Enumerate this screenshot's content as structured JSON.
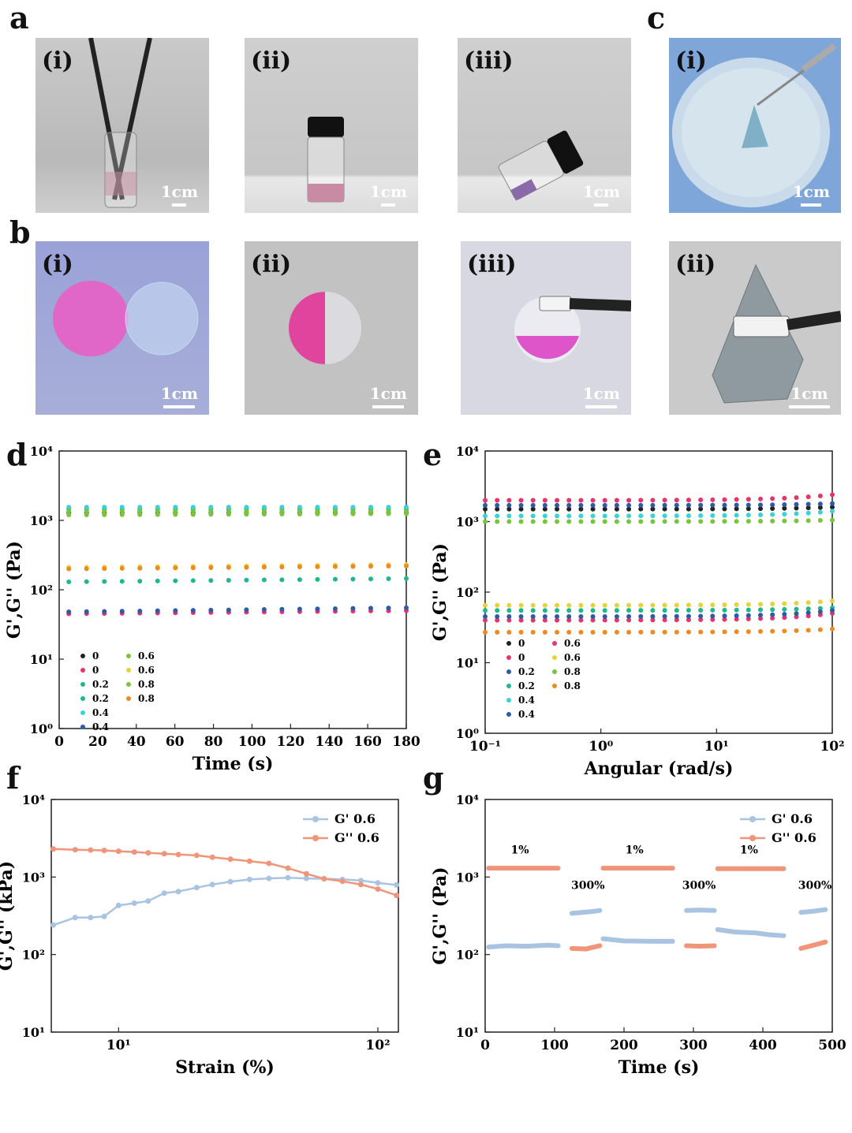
{
  "panels": {
    "a": {
      "letter": "a",
      "photos": [
        {
          "tag": "(i)",
          "scale": "1cm"
        },
        {
          "tag": "(ii)",
          "scale": "1cm"
        },
        {
          "tag": "(iii)",
          "scale": "1cm"
        }
      ]
    },
    "b": {
      "letter": "b",
      "photos": [
        {
          "tag": "(i)",
          "scale": "1cm"
        },
        {
          "tag": "(ii)",
          "scale": "1cm"
        },
        {
          "tag": "(iii)",
          "scale": "1cm"
        }
      ]
    },
    "c": {
      "letter": "c",
      "photos": [
        {
          "tag": "(i)",
          "scale": "1cm"
        },
        {
          "tag": "(ii)",
          "scale": "1cm"
        }
      ]
    },
    "d": {
      "letter": "d"
    },
    "e": {
      "letter": "e"
    },
    "f": {
      "letter": "f"
    },
    "g": {
      "letter": "g"
    }
  },
  "colors": {
    "black": "#222222",
    "red": "#e8336b",
    "teal": "#1fb78f",
    "cyan": "#3ad1d8",
    "blue": "#2f5aa8",
    "yellow": "#e6d23a",
    "orange": "#f08a1e",
    "green": "#7ac43a",
    "gprime": "#a8c4e2",
    "gdouble": "#f0957a"
  },
  "chart_data": [
    {
      "id": "d",
      "type": "scatter",
      "xlabel": "Time (s)",
      "ylabel": "G',G'' (Pa)",
      "xlim": [
        0,
        180
      ],
      "ylim": [
        1,
        10000
      ],
      "yscale": "log",
      "xticks": [
        "0",
        "20",
        "40",
        "60",
        "80",
        "100",
        "120",
        "140",
        "160",
        "180"
      ],
      "yticks": [
        "10⁰",
        "10¹",
        "10²",
        "10³",
        "10⁴"
      ],
      "legend": [
        "0",
        "0",
        "0.2",
        "0.2",
        "0.4",
        "0.4",
        "0.6",
        "0.6",
        "0.8",
        "0.8"
      ],
      "series": [
        {
          "name": "0",
          "color": "black",
          "x": [
            5,
            180
          ],
          "y": [
            1300,
            1300
          ]
        },
        {
          "name": "0",
          "color": "red",
          "x": [
            5,
            180
          ],
          "y": [
            45,
            50
          ]
        },
        {
          "name": "0.2",
          "color": "teal",
          "x": [
            5,
            180
          ],
          "y": [
            1450,
            1450
          ]
        },
        {
          "name": "0.2",
          "color": "teal",
          "x": [
            5,
            180
          ],
          "y": [
            130,
            145
          ]
        },
        {
          "name": "0.4",
          "color": "cyan",
          "x": [
            5,
            180
          ],
          "y": [
            1550,
            1550
          ]
        },
        {
          "name": "0.4",
          "color": "blue",
          "x": [
            5,
            180
          ],
          "y": [
            48,
            55
          ]
        },
        {
          "name": "0.6",
          "color": "green",
          "x": [
            5,
            180
          ],
          "y": [
            1350,
            1350
          ]
        },
        {
          "name": "0.6",
          "color": "yellow",
          "x": [
            5,
            180
          ],
          "y": [
            210,
            230
          ]
        },
        {
          "name": "0.8",
          "color": "green",
          "x": [
            5,
            180
          ],
          "y": [
            1200,
            1250
          ]
        },
        {
          "name": "0.8",
          "color": "orange",
          "x": [
            5,
            180
          ],
          "y": [
            200,
            220
          ]
        }
      ]
    },
    {
      "id": "e",
      "type": "scatter",
      "xlabel": "Angular (rad/s)",
      "ylabel": "G',G'' (Pa)",
      "xlim": [
        0.1,
        100
      ],
      "ylim": [
        1,
        10000
      ],
      "xscale": "log",
      "yscale": "log",
      "xticks": [
        "10⁻¹",
        "10⁰",
        "10¹",
        "10²"
      ],
      "yticks": [
        "10⁰",
        "10¹",
        "10²",
        "10³",
        "10⁴"
      ],
      "legend": [
        "0",
        "0",
        "0.2",
        "0.2",
        "0.4",
        "0.4",
        "0.6",
        "0.6",
        "0.8",
        "0.8"
      ],
      "series": [
        {
          "name": "0",
          "color": "black",
          "x": [
            0.1,
            100
          ],
          "y": [
            1500,
            1600
          ]
        },
        {
          "name": "0",
          "color": "red",
          "x": [
            0.1,
            100
          ],
          "y": [
            40,
            50
          ]
        },
        {
          "name": "0.2",
          "color": "blue",
          "x": [
            0.1,
            100
          ],
          "y": [
            1700,
            1800
          ]
        },
        {
          "name": "0.2",
          "color": "teal",
          "x": [
            0.1,
            100
          ],
          "y": [
            55,
            60
          ]
        },
        {
          "name": "0.4",
          "color": "cyan",
          "x": [
            0.1,
            100
          ],
          "y": [
            1200,
            1400
          ]
        },
        {
          "name": "0.4",
          "color": "blue",
          "x": [
            0.1,
            100
          ],
          "y": [
            45,
            55
          ]
        },
        {
          "name": "0.6",
          "color": "red",
          "x": [
            0.1,
            100
          ],
          "y": [
            2000,
            2400
          ]
        },
        {
          "name": "0.6",
          "color": "yellow",
          "x": [
            0.1,
            100
          ],
          "y": [
            65,
            75
          ]
        },
        {
          "name": "0.8",
          "color": "green",
          "x": [
            0.1,
            100
          ],
          "y": [
            1000,
            1050
          ]
        },
        {
          "name": "0.8",
          "color": "orange",
          "x": [
            0.1,
            100
          ],
          "y": [
            27,
            30
          ]
        }
      ]
    },
    {
      "id": "f",
      "type": "line",
      "xlabel": "Strain (%)",
      "ylabel": "G',G'' (kPa)",
      "xlim": [
        5.5,
        120
      ],
      "ylim": [
        10,
        10000
      ],
      "xscale": "log",
      "yscale": "log",
      "xticks": [
        "10¹",
        "10²"
      ],
      "yticks": [
        "10¹",
        "10²",
        "10³",
        "10⁴"
      ],
      "legend": [
        "G' 0.6",
        "G'' 0.6"
      ],
      "series": [
        {
          "name": "G' 0.6",
          "color": "gprime",
          "x": [
            5.6,
            6.8,
            7.8,
            8.8,
            10,
            11.5,
            13,
            15,
            17,
            20,
            23,
            27,
            32,
            38,
            45,
            53,
            62,
            73,
            86,
            100,
            118
          ],
          "y": [
            240,
            300,
            300,
            310,
            430,
            460,
            490,
            620,
            650,
            730,
            800,
            870,
            930,
            960,
            980,
            960,
            950,
            930,
            900,
            840,
            790
          ]
        },
        {
          "name": "G'' 0.6",
          "color": "gdouble",
          "x": [
            5.6,
            6.8,
            7.8,
            8.8,
            10,
            11.5,
            13,
            15,
            17,
            20,
            23,
            27,
            32,
            38,
            45,
            53,
            62,
            73,
            86,
            100,
            118
          ],
          "y": [
            2300,
            2250,
            2230,
            2200,
            2150,
            2100,
            2050,
            2000,
            1950,
            1900,
            1800,
            1700,
            1600,
            1500,
            1300,
            1100,
            950,
            880,
            800,
            700,
            580
          ]
        }
      ]
    },
    {
      "id": "g",
      "type": "line",
      "xlabel": "Time (s)",
      "ylabel": "G',G'' (Pa)",
      "xlim": [
        0,
        500
      ],
      "ylim": [
        10,
        10000
      ],
      "yscale": "log",
      "xticks": [
        "0",
        "100",
        "200",
        "300",
        "400",
        "500"
      ],
      "yticks": [
        "10¹",
        "10²",
        "10³",
        "10⁴"
      ],
      "legend": [
        "G'  0.6",
        "G''  0.6"
      ],
      "annotations": [
        {
          "text": "1%",
          "x": 50,
          "y": 2000
        },
        {
          "text": "300%",
          "x": 148,
          "y": 700
        },
        {
          "text": "1%",
          "x": 215,
          "y": 2000
        },
        {
          "text": "300%",
          "x": 308,
          "y": 700
        },
        {
          "text": "1%",
          "x": 380,
          "y": 2000
        },
        {
          "text": "300%",
          "x": 475,
          "y": 700
        }
      ],
      "series": [
        {
          "name": "G' 1%",
          "color": "gprime",
          "x": [
            5,
            30,
            60,
            90,
            105
          ],
          "y": [
            125,
            130,
            128,
            132,
            130
          ]
        },
        {
          "name": "G' 300%",
          "color": "gprime",
          "x": [
            125,
            140,
            155,
            165
          ],
          "y": [
            340,
            350,
            360,
            370
          ]
        },
        {
          "name": "G' 1%",
          "color": "gprime",
          "x": [
            170,
            200,
            240,
            270
          ],
          "y": [
            160,
            150,
            148,
            148
          ]
        },
        {
          "name": "G' 300%",
          "color": "gprime",
          "x": [
            290,
            310,
            330
          ],
          "y": [
            370,
            375,
            370
          ]
        },
        {
          "name": "G' 1%",
          "color": "gprime",
          "x": [
            335,
            360,
            390,
            410,
            430
          ],
          "y": [
            210,
            195,
            190,
            180,
            175
          ]
        },
        {
          "name": "G' 300%",
          "color": "gprime",
          "x": [
            455,
            470,
            490
          ],
          "y": [
            350,
            360,
            380
          ]
        },
        {
          "name": "G'' 1%",
          "color": "gdouble",
          "x": [
            5,
            50,
            105
          ],
          "y": [
            1300,
            1300,
            1300
          ]
        },
        {
          "name": "G'' 300%",
          "color": "gdouble",
          "x": [
            125,
            145,
            165
          ],
          "y": [
            120,
            118,
            130
          ]
        },
        {
          "name": "G'' 1%",
          "color": "gdouble",
          "x": [
            170,
            220,
            270
          ],
          "y": [
            1300,
            1300,
            1300
          ]
        },
        {
          "name": "G'' 300%",
          "color": "gdouble",
          "x": [
            290,
            310,
            330
          ],
          "y": [
            130,
            128,
            130
          ]
        },
        {
          "name": "G'' 1%",
          "color": "gdouble",
          "x": [
            335,
            380,
            430
          ],
          "y": [
            1280,
            1280,
            1280
          ]
        },
        {
          "name": "G'' 300%",
          "color": "gdouble",
          "x": [
            455,
            470,
            490
          ],
          "y": [
            120,
            130,
            145
          ]
        }
      ]
    }
  ]
}
